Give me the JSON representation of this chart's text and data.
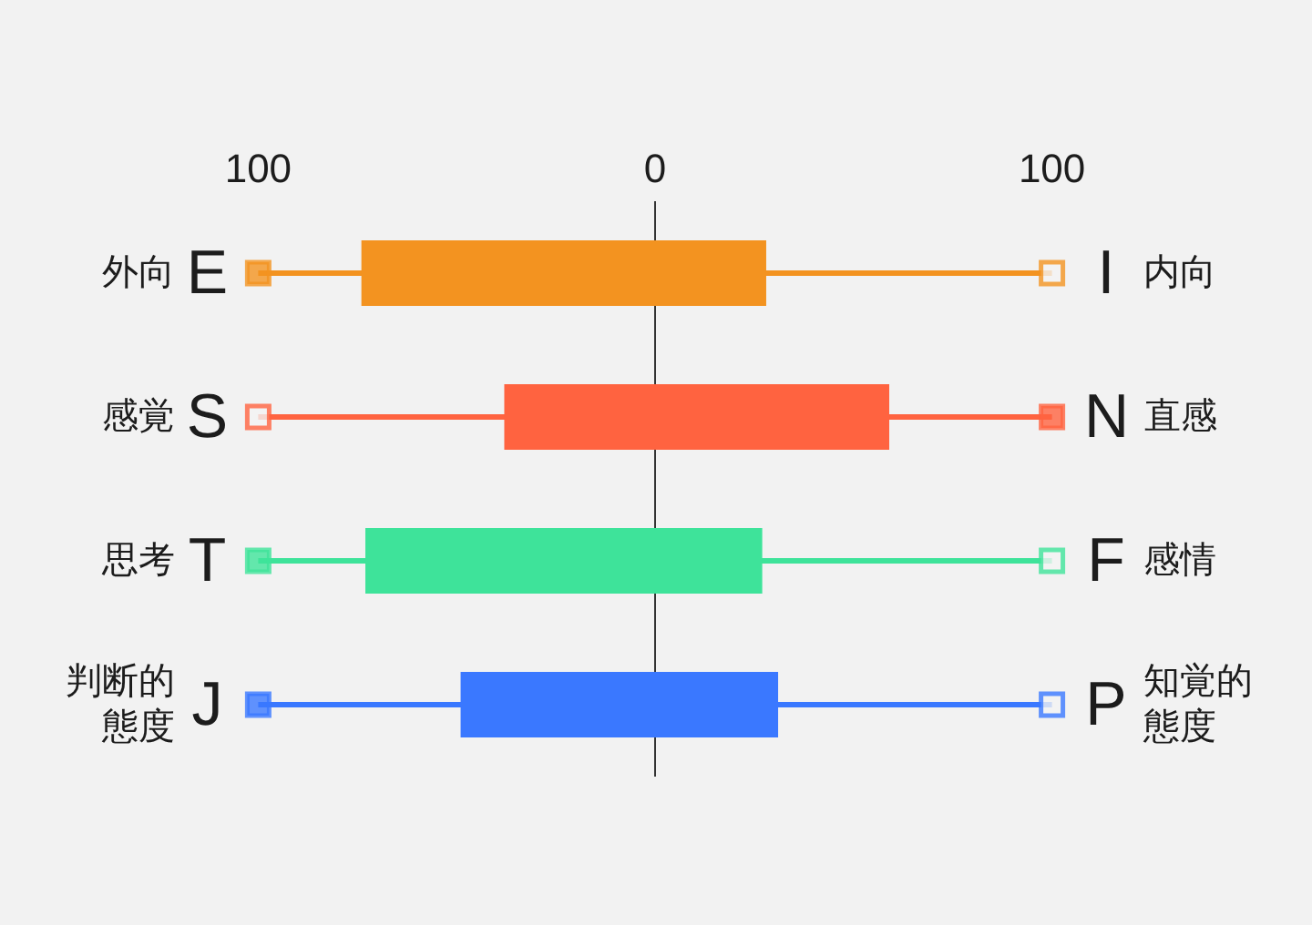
{
  "chart_data": {
    "type": "bar",
    "orientation": "horizontal",
    "categories": [
      "外向 E",
      "感覚 S",
      "思考 T",
      "判断的態度 J"
    ],
    "y2_categories": [
      "I 内向",
      "N 直感",
      "F 感情",
      "P 知覚的態度"
    ],
    "xlim": [
      -100,
      100
    ],
    "xticks": [
      {
        "value": -100,
        "label": "100"
      },
      0,
      100
    ],
    "ref_lines": [
      {
        "axis": "x",
        "value": 0,
        "color": "#333333"
      }
    ],
    "series": [
      {
        "base": [
          -74,
          -38,
          -73,
          -49
        ],
        "values": [
          102,
          97,
          100,
          80
        ],
        "colors": [
          "#f39320",
          "#ff6340",
          "#3ee39a",
          "#3a78ff"
        ]
      },
      {
        "type": "scatter",
        "marker": "square",
        "values": [
          -100,
          -100,
          -100,
          -100
        ],
        "colors": [
          "#f39320",
          "#ff6340",
          "#3ee39a",
          "#3a78ff"
        ]
      },
      {
        "type": "lollipop",
        "marker": "square",
        "values": [
          100,
          100,
          100,
          100
        ],
        "colors": [
          "#f39320",
          "#ff6340",
          "#3ee39a",
          "#3a78ff"
        ]
      }
    ]
  }
}
